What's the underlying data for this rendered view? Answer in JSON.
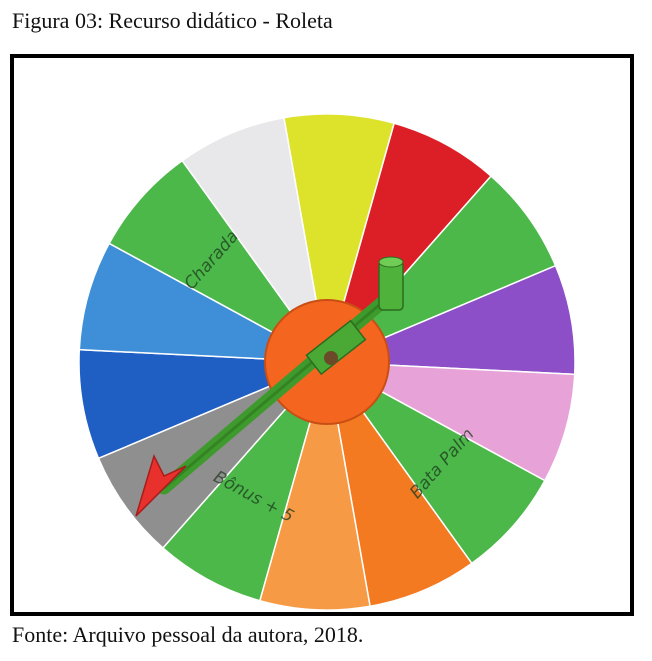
{
  "figure": {
    "caption": "Figura 03: Recurso didático - Roleta",
    "source": "Fonte: Arquivo pessoal da autora, 2018."
  },
  "wheel": {
    "colors": {
      "green": "#4cb84a",
      "white": "#e8e8ea",
      "yellow": "#dde22a",
      "red": "#dc1f26",
      "purple": "#8c4fc8",
      "pink": "#e7a2d8",
      "orange": "#f37a21",
      "light_orange": "#f79a45",
      "blue": "#3f8fd8",
      "dark_blue": "#1f5fc4",
      "gray": "#8f8f8f",
      "hub": "#f4661f",
      "pointer_arrow": "#e8302c",
      "pointer_arm": "#3e9a2c"
    },
    "segments": [
      {
        "color_key": "yellow"
      },
      {
        "color_key": "red"
      },
      {
        "color_key": "green"
      },
      {
        "color_key": "purple"
      },
      {
        "color_key": "pink"
      },
      {
        "color_key": "green"
      },
      {
        "color_key": "orange"
      },
      {
        "color_key": "light_orange"
      },
      {
        "color_key": "green"
      },
      {
        "color_key": "gray"
      },
      {
        "color_key": "dark_blue"
      },
      {
        "color_key": "blue"
      },
      {
        "color_key": "green"
      },
      {
        "color_key": "white"
      }
    ],
    "segment_labels": [
      {
        "segment": 5,
        "text": "Bata Palm"
      },
      {
        "segment": 8,
        "text": "Bônus + 5"
      },
      {
        "segment": 12,
        "text": "Charada"
      }
    ]
  }
}
